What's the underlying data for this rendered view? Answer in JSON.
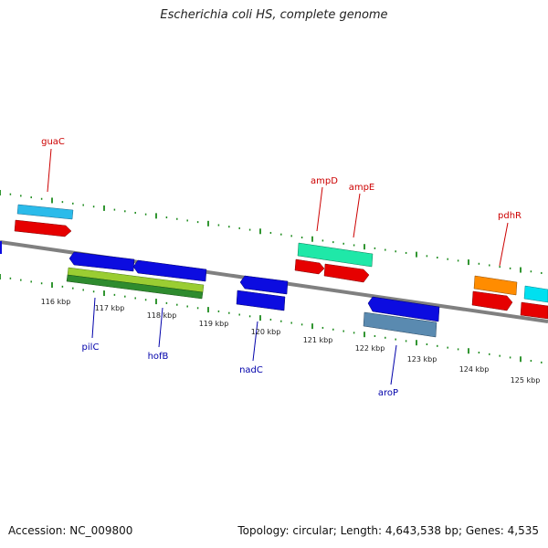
{
  "title": "Escherichia coli HS, complete genome",
  "footer": {
    "accession": "Accession: NC_009800",
    "summary": "Topology: circular; Length: 4,643,538 bp; Genes: 4,535"
  },
  "colors": {
    "backbone": "#808080",
    "tick": "#1b8a1b",
    "forward_label": "#cc0000",
    "reverse_label": "#0000aa",
    "cyan": "#2bbbea",
    "red": "#e60000",
    "green_teal": "#1fe8a8",
    "orange": "#ff8c00",
    "blue": "#0c0ce0",
    "steel": "#5a8ab0",
    "lime": "#9acd32",
    "dark_green": "#2e8b2e"
  },
  "ruler": {
    "tick_labels": [
      "116 kbp",
      "117 kbp",
      "118 kbp",
      "119 kbp",
      "120 kbp",
      "121 kbp",
      "122 kbp",
      "123 kbp",
      "124 kbp",
      "125 kbp"
    ]
  },
  "genes": {
    "forward": [
      "guaC",
      "ampD",
      "ampE",
      "pdhR"
    ],
    "reverse": [
      "pilC",
      "hofB",
      "nadC",
      "aroP"
    ]
  }
}
